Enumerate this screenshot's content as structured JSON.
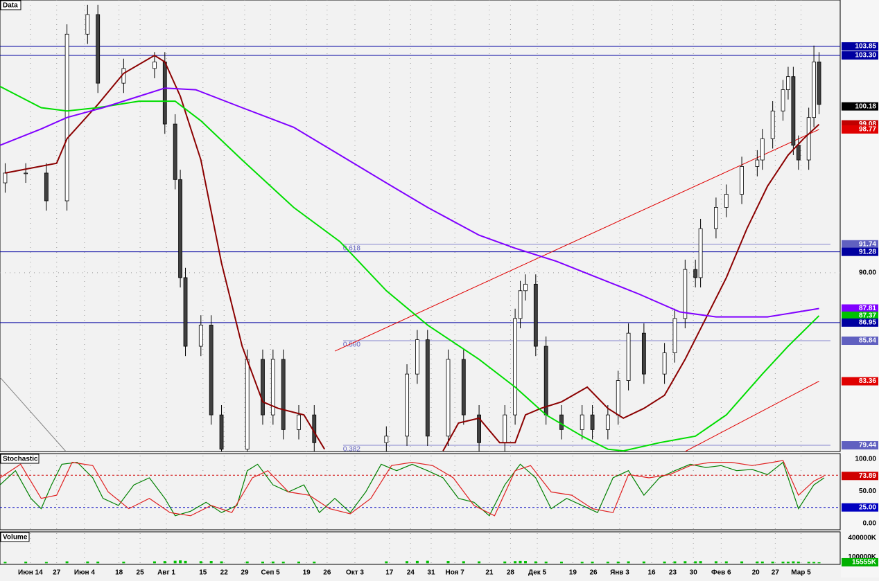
{
  "chart_data": {
    "type": "candlestick",
    "title": "Data",
    "xlim": [
      0,
      163.1
    ],
    "xticks": [
      {
        "value": 5.9,
        "label": "Июн 14"
      },
      {
        "value": 11,
        "label": "27"
      },
      {
        "value": 16.4,
        "label": "Июн 4"
      },
      {
        "value": 23.1,
        "label": "18"
      },
      {
        "value": 27.2,
        "label": "25"
      },
      {
        "value": 32.3,
        "label": "Авг 1"
      },
      {
        "value": 39.4,
        "label": "15"
      },
      {
        "value": 43.5,
        "label": "22"
      },
      {
        "value": 47.5,
        "label": "29"
      },
      {
        "value": 52.5,
        "label": "Сеп 5"
      },
      {
        "value": 59.5,
        "label": "19"
      },
      {
        "value": 63.5,
        "label": "26"
      },
      {
        "value": 68.9,
        "label": "Окт 3"
      },
      {
        "value": 75.6,
        "label": "17"
      },
      {
        "value": 79.7,
        "label": "24"
      },
      {
        "value": 83.7,
        "label": "31"
      },
      {
        "value": 88.3,
        "label": "Ноя 7"
      },
      {
        "value": 95,
        "label": "21"
      },
      {
        "value": 99.1,
        "label": "28"
      },
      {
        "value": 104.3,
        "label": "Дек 5"
      },
      {
        "value": 111.2,
        "label": "19"
      },
      {
        "value": 115.2,
        "label": "26"
      },
      {
        "value": 120.3,
        "label": "Янв 3"
      },
      {
        "value": 126.5,
        "label": "16"
      },
      {
        "value": 130.6,
        "label": "23"
      },
      {
        "value": 134.6,
        "label": "30"
      },
      {
        "value": 140,
        "label": "Фев 6"
      },
      {
        "value": 146.7,
        "label": "20"
      },
      {
        "value": 150.5,
        "label": "27"
      },
      {
        "value": 155.5,
        "label": "Мар 5"
      }
    ],
    "ylim": [
      79.06,
      106.69
    ],
    "yticks": [
      {
        "value": 90,
        "label": "90.00"
      }
    ],
    "grid": true,
    "up_color": "#ffffff",
    "down_color": "#404040",
    "x": [
      1,
      5,
      9,
      13,
      17,
      19,
      24,
      30,
      32,
      34,
      35,
      36,
      39,
      41,
      43,
      48,
      51,
      53,
      55,
      58,
      61,
      75,
      79,
      81,
      83,
      87,
      90,
      93,
      98,
      100,
      101,
      102,
      104,
      106,
      109,
      113,
      115,
      118,
      120,
      122,
      125,
      129,
      131,
      133,
      135,
      136,
      139,
      141,
      144,
      147,
      148,
      150,
      152,
      153,
      154,
      155,
      157,
      158,
      159
    ],
    "open": [
      95.5,
      96.1,
      96.1,
      94.4,
      104.6,
      105.8,
      101.6,
      102.5,
      102.9,
      99.1,
      95.7,
      89.7,
      85.5,
      86.8,
      81.3,
      79.2,
      84.7,
      81.3,
      84.7,
      80.4,
      81.3,
      79.6,
      80.0,
      83.8,
      85.9,
      80.0,
      84.7,
      81.3,
      79.6,
      81.3,
      87.2,
      88.9,
      89.3,
      85.5,
      81.3,
      80.4,
      81.3,
      80.4,
      81.3,
      83.4,
      86.3,
      83.8,
      85.1,
      87.2,
      90.2,
      89.7,
      92.7,
      94.0,
      94.8,
      96.5,
      96.9,
      98.2,
      99.9,
      101.2,
      102.0,
      97.8,
      96.9,
      99.5,
      102.9
    ],
    "high": [
      96.7,
      96.7,
      96.7,
      105.2,
      106.4,
      106.4,
      103.1,
      103.5,
      103.5,
      99.7,
      96.3,
      90.3,
      87.4,
      87.4,
      81.9,
      85.3,
      85.3,
      85.3,
      85.3,
      81.9,
      81.9,
      80.6,
      84.4,
      86.5,
      86.5,
      85.3,
      85.3,
      81.9,
      81.9,
      87.8,
      89.5,
      89.9,
      89.9,
      86.1,
      81.9,
      81.9,
      81.9,
      81.9,
      84.0,
      86.9,
      86.9,
      85.7,
      87.8,
      90.8,
      90.8,
      93.3,
      94.6,
      95.4,
      97.1,
      97.5,
      98.8,
      100.5,
      101.8,
      102.6,
      102.6,
      98.4,
      100.1,
      103.9,
      103.5
    ],
    "low": [
      94.9,
      95.5,
      93.8,
      93.8,
      104.0,
      101.0,
      101.0,
      101.9,
      98.5,
      95.1,
      89.1,
      84.9,
      84.9,
      80.7,
      78.6,
      78.6,
      80.7,
      80.7,
      79.8,
      79.8,
      79.0,
      79.0,
      79.4,
      83.2,
      79.4,
      79.4,
      80.7,
      79.0,
      79.0,
      80.7,
      86.6,
      88.3,
      84.9,
      80.7,
      79.8,
      79.8,
      79.8,
      79.8,
      80.7,
      82.8,
      83.2,
      83.2,
      84.5,
      86.6,
      89.1,
      89.1,
      92.1,
      93.4,
      94.2,
      95.9,
      96.3,
      97.6,
      99.3,
      100.6,
      97.2,
      96.3,
      96.3,
      98.9,
      99.7
    ],
    "close": [
      96.1,
      96.1,
      94.4,
      104.6,
      105.8,
      101.6,
      102.5,
      102.9,
      99.1,
      95.7,
      89.7,
      85.5,
      86.8,
      81.3,
      79.2,
      84.7,
      81.3,
      84.7,
      80.4,
      81.3,
      79.6,
      80.0,
      83.8,
      85.9,
      80.0,
      84.7,
      81.3,
      79.6,
      81.3,
      87.2,
      88.9,
      89.3,
      85.5,
      81.3,
      80.4,
      81.3,
      80.4,
      81.3,
      83.4,
      86.3,
      83.8,
      85.1,
      87.2,
      90.2,
      89.7,
      92.7,
      94.0,
      94.8,
      96.5,
      96.9,
      98.2,
      99.9,
      101.2,
      102.0,
      97.8,
      96.9,
      99.5,
      102.9,
      100.3
    ],
    "series": [
      {
        "color": "#8b0000",
        "x": [
          1,
          11,
          13,
          19,
          24,
          30,
          32,
          35,
          39,
          43,
          47,
          51,
          54,
          59,
          63,
          75,
          86,
          89,
          93,
          97,
          100,
          102,
          105,
          109,
          114,
          118,
          121,
          125,
          129,
          133,
          137,
          141,
          145,
          149,
          153,
          156,
          159
        ],
        "values": [
          96.1,
          96.7,
          98.2,
          100.3,
          102.2,
          103.3,
          102.9,
          100.8,
          96.9,
          90.6,
          85.5,
          82.1,
          81.7,
          81.3,
          79.2,
          null,
          79.1,
          80.8,
          81.1,
          79.6,
          79.6,
          81.3,
          81.7,
          82.1,
          83.0,
          81.7,
          81.1,
          81.7,
          82.5,
          84.7,
          87.2,
          89.7,
          92.7,
          95.3,
          97.2,
          98.2,
          99.08
        ]
      },
      {
        "color": "#00dd00",
        "x": [
          0,
          8,
          13,
          19,
          27,
          34,
          39,
          47,
          57,
          66,
          75,
          83,
          93,
          100,
          106,
          113,
          118,
          121,
          128,
          135,
          141,
          148,
          153,
          159
        ],
        "values": [
          101.4,
          100.1,
          99.9,
          100.1,
          100.5,
          100.5,
          99.3,
          96.9,
          94.0,
          91.9,
          88.9,
          86.8,
          84.7,
          83.0,
          81.3,
          80.0,
          79.2,
          79.1,
          79.6,
          80.0,
          81.3,
          83.8,
          85.5,
          87.37
        ]
      },
      {
        "color": "#8000ff",
        "x": [
          0,
          8,
          13,
          20,
          27,
          32,
          38,
          47,
          57,
          66,
          75,
          83,
          93,
          100,
          108,
          116,
          124,
          132,
          139,
          149,
          153,
          159
        ],
        "values": [
          97.8,
          98.8,
          99.5,
          100.1,
          100.8,
          101.3,
          101.2,
          100.1,
          98.9,
          97.2,
          95.5,
          94.0,
          92.3,
          91.5,
          90.7,
          89.7,
          88.7,
          87.6,
          87.3,
          87.3,
          87.5,
          87.81
        ]
      }
    ],
    "trendlines": [
      {
        "color": "#e00000",
        "x": [
          65,
          159
        ],
        "values": [
          85.2,
          98.77
        ]
      },
      {
        "color": "#e00000",
        "x": [
          133,
          159
        ],
        "values": [
          79.06,
          83.36
        ]
      },
      {
        "color": "#808080",
        "x": [
          0,
          12.8
        ],
        "values": [
          83.6,
          79.06
        ]
      }
    ],
    "fibo": {
      "x0": 66.6,
      "color": "#6060c0",
      "levels": [
        {
          "value": 91.74,
          "label": "0.618"
        },
        {
          "value": 85.84,
          "label": "0.500"
        },
        {
          "value": 79.44,
          "label": "0.382"
        }
      ]
    },
    "price_markers": [
      {
        "value": 103.85,
        "label": "103.85",
        "color": "#0000a0",
        "line": "full"
      },
      {
        "value": 103.3,
        "label": "103.30",
        "color": "#0000a0",
        "line": "full"
      },
      {
        "value": 100.18,
        "label": "100.18",
        "color": "#000000",
        "line": "none"
      },
      {
        "value": 99.08,
        "label": "99.08",
        "color": "#c00000",
        "line": "none"
      },
      {
        "value": 98.77,
        "label": "98.77",
        "color": "#e00000",
        "line": "none"
      },
      {
        "value": 91.74,
        "label": "91.74",
        "color": "#6060c0",
        "line": "none"
      },
      {
        "value": 91.28,
        "label": "91.28",
        "color": "#0000a0",
        "line": "full"
      },
      {
        "value": 87.81,
        "label": "87.81",
        "color": "#8000ff",
        "line": "none"
      },
      {
        "value": 87.37,
        "label": "87.37",
        "color": "#00c000",
        "line": "none"
      },
      {
        "value": 86.95,
        "label": "86.95",
        "color": "#0000a0",
        "line": "full"
      },
      {
        "value": 85.84,
        "label": "85.84",
        "color": "#6060c0",
        "line": "none"
      },
      {
        "value": 83.36,
        "label": "83.36",
        "color": "#e00000",
        "line": "none"
      },
      {
        "value": 79.44,
        "label": "79.44",
        "color": "#6060c0",
        "line": "none"
      }
    ],
    "stochastic": {
      "title": "Stochastic",
      "ylim": [
        -9.7,
        108.6
      ],
      "yticks": [
        {
          "value": 100,
          "label": "100.00"
        },
        {
          "value": 50,
          "label": "50.00"
        },
        {
          "value": 0,
          "label": "0.00"
        }
      ],
      "levels": [
        {
          "value": 75,
          "color": "#d00000"
        },
        {
          "value": 25,
          "color": "#0000c0"
        }
      ],
      "markers": [
        {
          "value": 73.89,
          "label": "73.89",
          "color": "#d00000"
        },
        {
          "value": 25,
          "label": "25.00",
          "color": "#0000c0"
        }
      ],
      "series": [
        {
          "color": "#008000",
          "x": [
            0,
            3,
            6,
            8,
            10,
            12,
            15,
            18,
            20,
            23,
            26,
            29,
            32,
            34,
            37,
            40,
            43,
            46,
            48,
            50,
            53,
            56,
            59,
            62,
            65,
            68,
            71,
            74,
            77,
            80,
            83,
            86,
            89,
            92,
            95,
            98,
            101,
            104,
            107,
            110,
            113,
            116,
            119,
            122,
            125,
            128,
            131,
            134,
            137,
            140,
            143,
            146,
            149,
            152,
            155,
            158,
            160
          ],
          "values": [
            60,
            82,
            39,
            23,
            60,
            92,
            95,
            71,
            39,
            28,
            60,
            71,
            39,
            12,
            19,
            33,
            17,
            28,
            82,
            92,
            60,
            49,
            60,
            17,
            39,
            17,
            49,
            92,
            82,
            92,
            82,
            71,
            39,
            33,
            12,
            60,
            92,
            71,
            23,
            39,
            28,
            17,
            71,
            82,
            44,
            71,
            82,
            92,
            87,
            90,
            82,
            84,
            76,
            95,
            23,
            60,
            71
          ]
        },
        {
          "color": "#e02020",
          "x": [
            0,
            4,
            8,
            11,
            14,
            18,
            21,
            25,
            29,
            33,
            37,
            41,
            45,
            49,
            52,
            56,
            60,
            64,
            68,
            72,
            76,
            80,
            84,
            88,
            92,
            96,
            100,
            103,
            107,
            111,
            115,
            119,
            122,
            126,
            130,
            134,
            138,
            142,
            146,
            150,
            152,
            155,
            158,
            160
          ],
          "values": [
            71,
            92,
            39,
            44,
            95,
            90,
            49,
            23,
            39,
            17,
            12,
            28,
            17,
            71,
            82,
            49,
            44,
            23,
            15,
            39,
            90,
            95,
            90,
            71,
            28,
            12,
            82,
            90,
            49,
            44,
            23,
            17,
            76,
            71,
            76,
            90,
            95,
            95,
            90,
            95,
            98,
            44,
            66,
            73.89
          ]
        }
      ]
    },
    "volume": {
      "title": "Volume",
      "ylim": [
        -18000,
        497000
      ],
      "yticks": [
        {
          "value": 400000,
          "label": "400000K"
        },
        {
          "value": 100000,
          "label": "100000K"
        }
      ],
      "marker": {
        "value": 15555,
        "label": "15555K",
        "color": "#00b000"
      },
      "color": "#00c000",
      "values": [
        22000,
        25000,
        20000,
        30000,
        28000,
        26000,
        24000,
        30000,
        35000,
        40000,
        45000,
        38000,
        33000,
        36000,
        30000,
        28000,
        25000,
        27000,
        24000,
        26000,
        25000,
        30000,
        34000,
        38000,
        40000,
        36000,
        32000,
        30000,
        28000,
        34000,
        38000,
        36000,
        30000,
        26000,
        24000,
        22000,
        25000,
        24000,
        26000,
        30000,
        28000,
        27000,
        30000,
        33000,
        31000,
        34000,
        32000,
        30000,
        29000,
        28000,
        27000,
        26000,
        25000,
        24000,
        30000,
        26000,
        22000,
        20000,
        15555
      ]
    }
  }
}
